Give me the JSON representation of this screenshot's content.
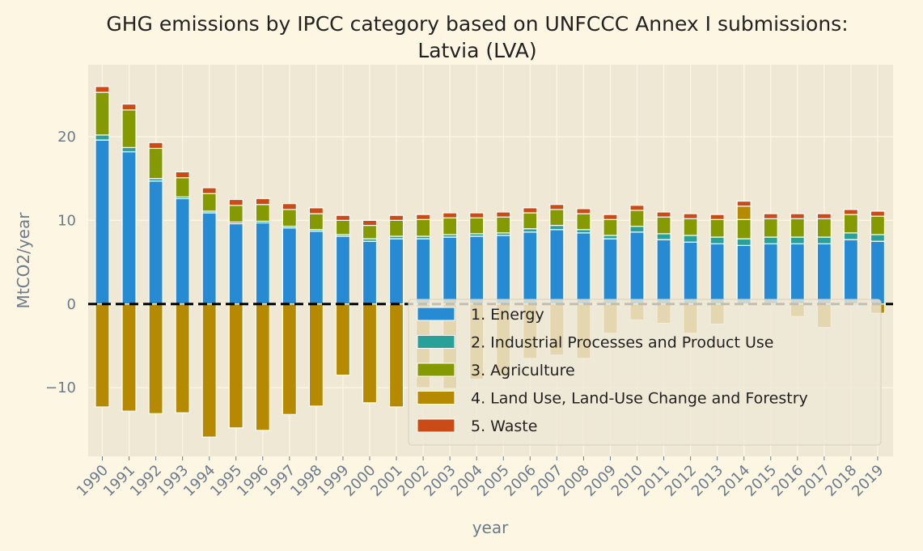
{
  "chart_data": {
    "type": "bar",
    "stacked": true,
    "title": "GHG emissions by IPCC category based on UNFCCC Annex I submissions:",
    "subtitle": "Latvia (LVA)",
    "xlabel": "year",
    "ylabel": "MtCO2/year",
    "ylim": [
      -18.2,
      28.6
    ],
    "yticks": [
      -10,
      0,
      10,
      20
    ],
    "grid": true,
    "legend_position": "lower-right",
    "zero_line": {
      "style": "dashed",
      "color": "#000000"
    },
    "categories": [
      "1990",
      "1991",
      "1992",
      "1993",
      "1994",
      "1995",
      "1996",
      "1997",
      "1998",
      "1999",
      "2000",
      "2001",
      "2002",
      "2003",
      "2004",
      "2005",
      "2006",
      "2007",
      "2008",
      "2009",
      "2010",
      "2011",
      "2012",
      "2013",
      "2014",
      "2015",
      "2016",
      "2017",
      "2018",
      "2019"
    ],
    "series": [
      {
        "name": "1. Energy",
        "color": "#268bd2",
        "values": [
          19.6,
          18.2,
          14.7,
          12.6,
          10.9,
          9.6,
          9.7,
          9.1,
          8.7,
          8.1,
          7.5,
          7.8,
          7.8,
          8.0,
          8.1,
          8.2,
          8.6,
          8.9,
          8.5,
          7.8,
          8.6,
          7.7,
          7.4,
          7.2,
          7.0,
          7.2,
          7.2,
          7.2,
          7.7,
          7.5
        ]
      },
      {
        "name": "2. Industrial Processes and Product Use",
        "color": "#2aa198",
        "values": [
          0.6,
          0.5,
          0.3,
          0.2,
          0.2,
          0.2,
          0.2,
          0.2,
          0.2,
          0.2,
          0.3,
          0.3,
          0.3,
          0.3,
          0.3,
          0.3,
          0.4,
          0.5,
          0.4,
          0.4,
          0.7,
          0.7,
          0.8,
          0.8,
          0.8,
          0.8,
          0.8,
          0.8,
          0.8,
          0.8
        ]
      },
      {
        "name": "3. Agriculture",
        "color": "#859900",
        "values": [
          5.1,
          4.5,
          3.6,
          2.3,
          2.1,
          2.0,
          2.0,
          2.0,
          1.9,
          1.7,
          1.6,
          1.9,
          2.0,
          2.0,
          1.9,
          1.9,
          1.9,
          1.9,
          1.9,
          1.9,
          1.9,
          2.0,
          2.0,
          2.1,
          2.3,
          2.2,
          2.2,
          2.2,
          2.2,
          2.2
        ]
      },
      {
        "name": "4. Land Use, Land-Use Change and Forestry",
        "color": "#b58900",
        "values": [
          -12.3,
          -12.8,
          -13.1,
          -13.0,
          -15.9,
          -14.8,
          -15.1,
          -13.2,
          -12.2,
          -8.5,
          -11.8,
          -12.3,
          -10.0,
          -10.1,
          -9.0,
          -8.6,
          -6.5,
          -6.1,
          -6.5,
          -3.5,
          -1.9,
          -2.3,
          -3.5,
          -2.4,
          1.6,
          -0.2,
          -1.5,
          -2.8,
          -0.2,
          -1.1
        ]
      },
      {
        "name": "5. Waste",
        "color": "#cb4b16",
        "values": [
          0.7,
          0.7,
          0.7,
          0.7,
          0.7,
          0.7,
          0.7,
          0.7,
          0.7,
          0.6,
          0.6,
          0.6,
          0.6,
          0.6,
          0.6,
          0.6,
          0.6,
          0.6,
          0.6,
          0.6,
          0.6,
          0.6,
          0.6,
          0.6,
          0.6,
          0.6,
          0.6,
          0.6,
          0.6,
          0.6
        ]
      }
    ]
  }
}
